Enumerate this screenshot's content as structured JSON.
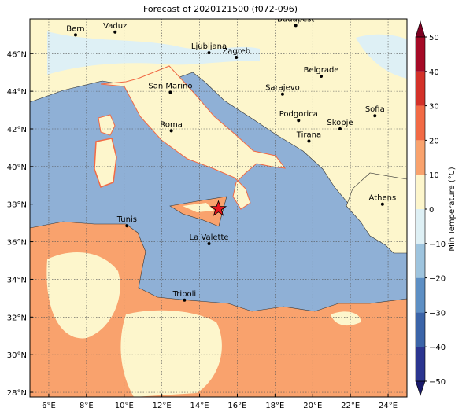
{
  "title": "Forecast of 2020121500 (f072-096)",
  "map": {
    "xlim": [
      5,
      25
    ],
    "ylim": [
      27.75,
      47.85
    ],
    "grid": true,
    "lon_ticks": [
      {
        "value": 6,
        "label": "6°E"
      },
      {
        "value": 8,
        "label": "8°E"
      },
      {
        "value": 10,
        "label": "10°E"
      },
      {
        "value": 12,
        "label": "12°E"
      },
      {
        "value": 14,
        "label": "14°E"
      },
      {
        "value": 16,
        "label": "16°E"
      },
      {
        "value": 18,
        "label": "18°E"
      },
      {
        "value": 20,
        "label": "20°E"
      },
      {
        "value": 22,
        "label": "22°E"
      },
      {
        "value": 24,
        "label": "24°E"
      }
    ],
    "lat_ticks": [
      {
        "value": 28,
        "label": "28°N"
      },
      {
        "value": 30,
        "label": "30°N"
      },
      {
        "value": 32,
        "label": "32°N"
      },
      {
        "value": 34,
        "label": "34°N"
      },
      {
        "value": 36,
        "label": "36°N"
      },
      {
        "value": 38,
        "label": "38°N"
      },
      {
        "value": 40,
        "label": "40°N"
      },
      {
        "value": 42,
        "label": "42°N"
      },
      {
        "value": 44,
        "label": "44°N"
      },
      {
        "value": 46,
        "label": "46°N"
      }
    ],
    "cities": [
      {
        "name": "Bern",
        "lon": 7.42,
        "lat": 47.0
      },
      {
        "name": "Vaduz",
        "lon": 9.52,
        "lat": 47.15
      },
      {
        "name": "Budapest",
        "lon": 19.1,
        "lat": 47.5
      },
      {
        "name": "Ljubljana",
        "lon": 14.5,
        "lat": 46.05
      },
      {
        "name": "Zagreb",
        "lon": 15.95,
        "lat": 45.8
      },
      {
        "name": "Belgrade",
        "lon": 20.45,
        "lat": 44.8
      },
      {
        "name": "San Marino",
        "lon": 12.45,
        "lat": 43.95
      },
      {
        "name": "Sarajevo",
        "lon": 18.4,
        "lat": 43.85
      },
      {
        "name": "Sofia",
        "lon": 23.3,
        "lat": 42.7
      },
      {
        "name": "Roma",
        "lon": 12.5,
        "lat": 41.9
      },
      {
        "name": "Podgorica",
        "lon": 19.25,
        "lat": 42.45
      },
      {
        "name": "Skopje",
        "lon": 21.45,
        "lat": 42.0
      },
      {
        "name": "Tirana",
        "lon": 19.8,
        "lat": 41.35
      },
      {
        "name": "Athens",
        "lon": 23.7,
        "lat": 38.0
      },
      {
        "name": "Tunis",
        "lon": 10.15,
        "lat": 36.85
      },
      {
        "name": "La Valette",
        "lon": 14.5,
        "lat": 35.9
      },
      {
        "name": "Tripoli",
        "lon": 13.2,
        "lat": 32.9
      }
    ],
    "marker": {
      "lon": 15.0,
      "lat": 37.75,
      "color": "#e8141c"
    }
  },
  "colorbar": {
    "label": "Min Temperature (°C)",
    "ticks": [
      {
        "value": -50,
        "label": "−50"
      },
      {
        "value": -40,
        "label": "−40"
      },
      {
        "value": -30,
        "label": "−30"
      },
      {
        "value": -20,
        "label": "−20"
      },
      {
        "value": -10,
        "label": "−10"
      },
      0,
      10,
      20,
      30,
      40,
      50
    ],
    "colors": [
      "#2b3590",
      "#3b64a8",
      "#5d8fc4",
      "#9ec4de",
      "#def0f5",
      "#fdf6cc",
      "#f9a26d",
      "#f26a45",
      "#d33129",
      "#a50a26"
    ],
    "under_color": "#1a1a6b",
    "over_color": "#7d0022"
  }
}
